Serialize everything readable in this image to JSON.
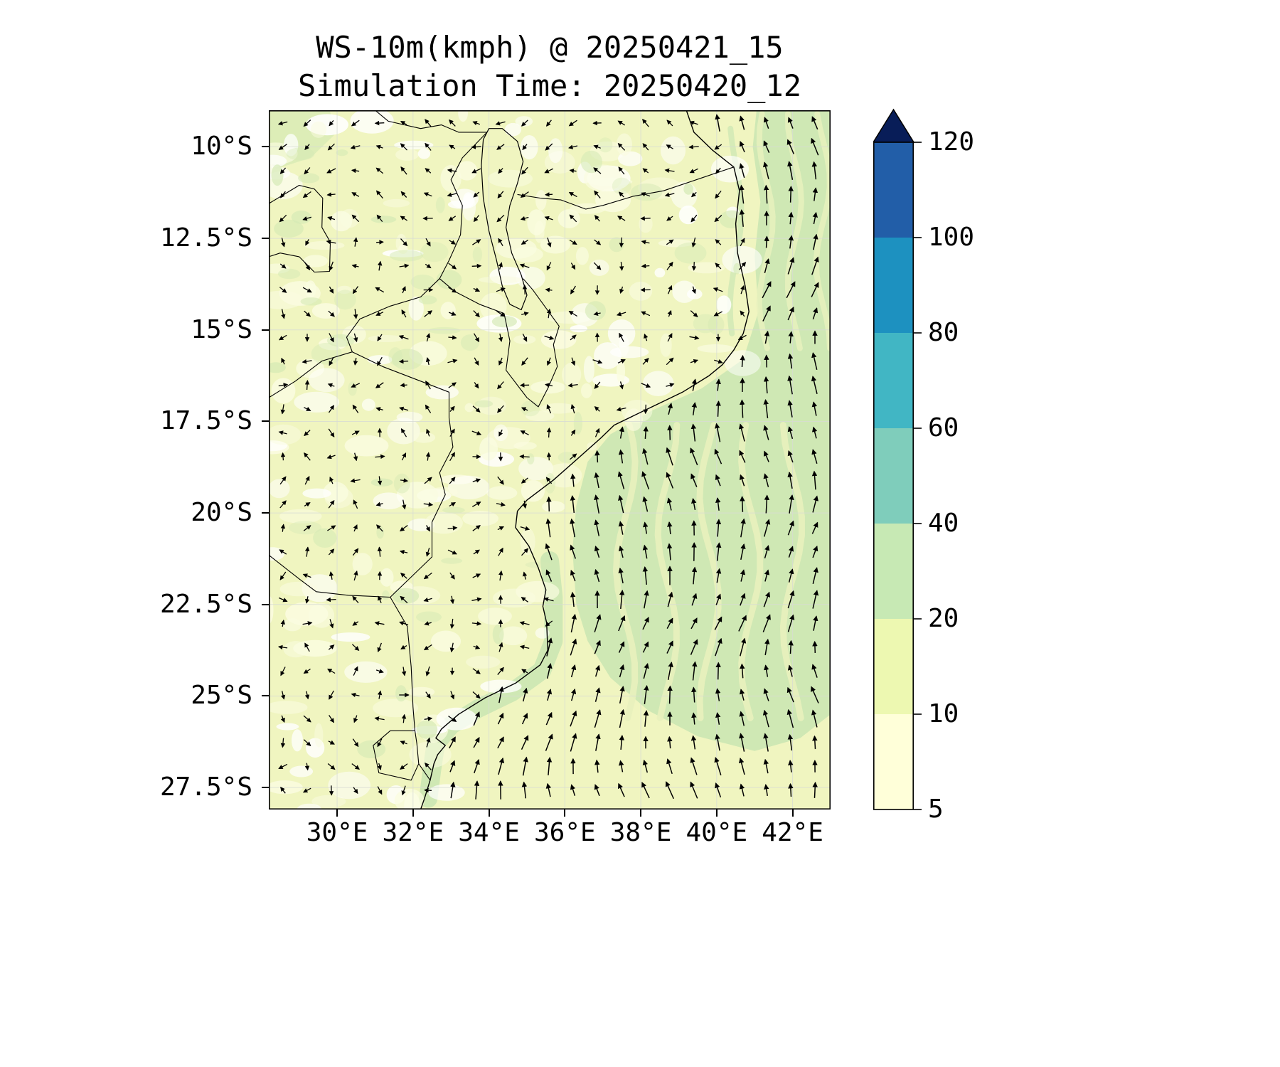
{
  "title": "WS-10m(kmph) @ 20250421_15",
  "subtitle": "Simulation Time: 20250420_12",
  "chart_data": {
    "type": "heatmap",
    "subtype": "wind-speed-map-with-quiver-arrows",
    "title": "WS-10m(kmph) @ 20250421_15",
    "subtitle": "Simulation Time: 20250420_12",
    "variable": "WS-10m",
    "units": "kmph",
    "valid_time": "20250421_15",
    "simulation_time": "20250420_12",
    "lon_range": [
      28.2,
      43.0
    ],
    "lat_range": [
      9.0,
      28.1
    ],
    "x_ticks": [
      {
        "lon": 30,
        "label": "30°E"
      },
      {
        "lon": 32,
        "label": "32°E"
      },
      {
        "lon": 34,
        "label": "34°E"
      },
      {
        "lon": 36,
        "label": "36°E"
      },
      {
        "lon": 38,
        "label": "38°E"
      },
      {
        "lon": 40,
        "label": "40°E"
      },
      {
        "lon": 42,
        "label": "42°E"
      }
    ],
    "y_ticks": [
      {
        "lat": 10,
        "label": "10°S"
      },
      {
        "lat": 12.5,
        "label": "12.5°S"
      },
      {
        "lat": 15,
        "label": "15°S"
      },
      {
        "lat": 17.5,
        "label": "17.5°S"
      },
      {
        "lat": 20,
        "label": "20°S"
      },
      {
        "lat": 22.5,
        "label": "22.5°S"
      },
      {
        "lat": 25,
        "label": "25°S"
      },
      {
        "lat": 27.5,
        "label": "27.5°S"
      }
    ],
    "colorbar": {
      "levels": [
        5,
        10,
        20,
        40,
        60,
        80,
        100,
        120
      ],
      "labels": [
        "5",
        "10",
        "20",
        "40",
        "60",
        "80",
        "100",
        "120"
      ],
      "colors": [
        "#ffffd9",
        "#edf8b1",
        "#c7e9b4",
        "#7fcdbb",
        "#41b6c4",
        "#1d91c0",
        "#225ea8"
      ],
      "over_color": "#081d58"
    },
    "wind_field": {
      "description": "Quiver arrows: strong northward flow (20-40 kmph) over the Mozambique Channel and along the coast; light variable winds (5-15 kmph) inland.",
      "grid_cols": 23,
      "grid_rows": 29,
      "seed": 7
    }
  },
  "colors": {
    "land_base": "#f0f5c0",
    "mottle_pale": "#fafce0",
    "mottle_white": "#ffffff",
    "ocean_green": "#cfe8b4",
    "streak_pale": "#e8f1bd",
    "land_green": "#d4e9b4",
    "grid": "#d8dcd4",
    "outline": "#000000",
    "arrow": "#000000"
  }
}
